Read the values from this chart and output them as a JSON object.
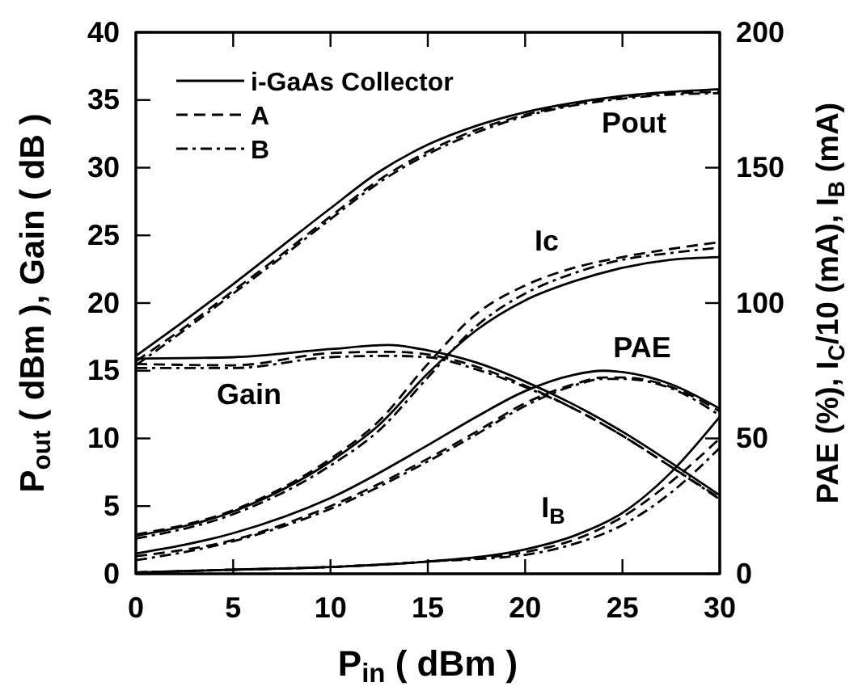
{
  "chart_data": {
    "type": "line",
    "xlabel": "P$_{in}$ ( dBm )",
    "ylabel": "P$_{out}$ ( dBm ), Gain ( dB )",
    "y2label": "PAE (%), I$_{C}$/10 (mA), I$_{B}$ (mA)",
    "xlim": [
      0,
      30
    ],
    "xticks": [
      0,
      5,
      10,
      15,
      20,
      25,
      30
    ],
    "ylim": [
      0,
      40
    ],
    "yticks": [
      0,
      5,
      10,
      15,
      20,
      25,
      30,
      35,
      40
    ],
    "y2lim": [
      0,
      200
    ],
    "y2ticks": [
      0,
      50,
      100,
      150,
      200
    ],
    "legend": "top left",
    "grid": false,
    "marker": "none",
    "series": [
      {
        "name": "i-GaAs Collector",
        "color": "#000000",
        "line_style": "solid",
        "x": [
          0,
          2.5,
          5,
          7.5,
          10,
          12.5,
          15,
          17.5,
          20,
          22.5,
          25,
          27.5,
          30
        ],
        "values": [
          16.1,
          18.7,
          21.4,
          24.2,
          27,
          29.7,
          31.7,
          33.1,
          34.1,
          34.8,
          35.3,
          35.6,
          35.8
        ]
      },
      {
        "name": "A",
        "color": "#000000",
        "line_style": "dashed",
        "x": [
          0,
          2.5,
          5,
          7.5,
          10,
          12.5,
          15,
          17.5,
          20,
          22.5,
          25,
          27.5,
          30
        ],
        "values": [
          15.7,
          18.2,
          20.9,
          23.6,
          26.4,
          29.1,
          31.2,
          32.8,
          33.9,
          34.7,
          35.2,
          35.5,
          35.6
        ]
      },
      {
        "name": "B",
        "color": "#000000",
        "line_style": "dashdot",
        "x": [
          0,
          2.5,
          5,
          7.5,
          10,
          12.5,
          15,
          17.5,
          20,
          22.5,
          25,
          27.5,
          30
        ],
        "values": [
          15.4,
          18,
          20.7,
          23.4,
          26.2,
          28.9,
          31,
          32.6,
          33.8,
          34.6,
          35.1,
          35.4,
          35.5
        ]
      },
      {
        "color": "#000000",
        "line_style": "solid",
        "x": [
          0,
          5,
          10,
          13,
          15,
          17.5,
          20,
          22.5,
          25,
          27.5,
          30
        ],
        "values": [
          15.9,
          16,
          16.6,
          16.9,
          16.5,
          15.6,
          14.2,
          12.5,
          10.5,
          8.2,
          5.8
        ]
      },
      {
        "color": "#000000",
        "line_style": "dashed",
        "x": [
          0,
          5,
          10,
          13,
          15,
          17.5,
          20,
          22.5,
          25,
          27.5,
          30
        ],
        "values": [
          15.5,
          15.4,
          16.3,
          16.4,
          16.2,
          15.3,
          13.9,
          12.2,
          10.2,
          7.9,
          5.6
        ]
      },
      {
        "color": "#000000",
        "line_style": "dashdot",
        "x": [
          0,
          5,
          10,
          13,
          15,
          17.5,
          20,
          22.5,
          25,
          27.5,
          30
        ],
        "values": [
          15.2,
          15.2,
          16,
          16.1,
          16,
          15.1,
          13.8,
          12.2,
          10.2,
          7.9,
          5.5
        ]
      },
      {
        "color": "#000000",
        "line_style": "solid",
        "axis": "y2",
        "x": [
          0,
          5,
          10,
          12.5,
          15,
          17.5,
          20,
          22.5,
          25,
          27.5,
          30
        ],
        "values": [
          14,
          23,
          41.5,
          55,
          74,
          90,
          101,
          108,
          113,
          116,
          117
        ]
      },
      {
        "color": "#000000",
        "line_style": "dashed",
        "axis": "y2",
        "x": [
          0,
          5,
          10,
          12.5,
          15,
          17.5,
          20,
          22.5,
          25,
          27.5,
          30
        ],
        "values": [
          14.5,
          23.5,
          42.5,
          56.5,
          77.5,
          96,
          106.5,
          113,
          117,
          120,
          122.5
        ]
      },
      {
        "color": "#000000",
        "line_style": "dashdot",
        "axis": "y2",
        "x": [
          0,
          5,
          10,
          12.5,
          15,
          17.5,
          20,
          22.5,
          25,
          27.5,
          30
        ],
        "values": [
          13,
          22,
          40,
          53,
          72.5,
          91.5,
          103.5,
          111,
          116,
          118.5,
          120.5
        ]
      },
      {
        "color": "#000000",
        "line_style": "solid",
        "axis": "y2",
        "x": [
          0,
          5,
          10,
          15,
          17.5,
          20,
          22.5,
          24,
          25,
          27.5,
          30
        ],
        "values": [
          7.5,
          15,
          28,
          47.5,
          58,
          67.5,
          73.5,
          75,
          74.5,
          70,
          61
        ]
      },
      {
        "color": "#000000",
        "line_style": "dashed",
        "axis": "y2",
        "x": [
          0,
          5,
          10,
          15,
          17.5,
          20,
          22.5,
          24,
          25,
          27.5,
          30
        ],
        "values": [
          6.5,
          12.5,
          25,
          42.5,
          52.5,
          63,
          70,
          72.5,
          72.5,
          69,
          60
        ]
      },
      {
        "color": "#000000",
        "line_style": "dashdot",
        "axis": "y2",
        "x": [
          0,
          5,
          10,
          15,
          17.5,
          20,
          22.5,
          24,
          25,
          27.5,
          30
        ],
        "values": [
          5,
          12,
          24,
          41.5,
          51.5,
          62,
          69.5,
          72,
          72,
          68.5,
          58.5
        ]
      },
      {
        "color": "#000000",
        "line_style": "solid",
        "axis": "y2",
        "x": [
          0,
          5,
          10,
          15,
          20,
          22.5,
          25,
          27.5,
          30
        ],
        "values": [
          0.5,
          1.5,
          2.5,
          4.5,
          9,
          14,
          22.5,
          37.5,
          58
        ]
      },
      {
        "color": "#000000",
        "line_style": "dashed",
        "axis": "y2",
        "x": [
          0,
          5,
          10,
          15,
          20,
          22.5,
          25,
          27.5,
          30
        ],
        "values": [
          0.5,
          1.5,
          2.5,
          4.5,
          8,
          12.5,
          21,
          34,
          50
        ]
      },
      {
        "color": "#000000",
        "line_style": "dashdot",
        "axis": "y2",
        "x": [
          0,
          5,
          10,
          15,
          20,
          22.5,
          25,
          27.5,
          30
        ],
        "values": [
          0.5,
          1.5,
          2.5,
          4.5,
          7,
          11,
          18,
          30,
          46.5
        ]
      }
    ],
    "annotations": [
      "Pout",
      "Ic",
      "Gain",
      "PAE",
      "I$_{B}$"
    ]
  }
}
